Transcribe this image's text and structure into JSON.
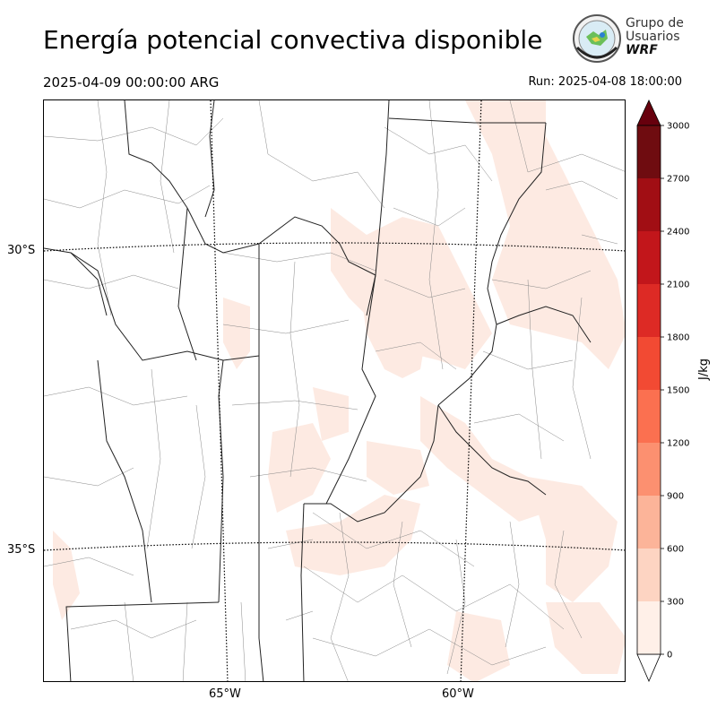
{
  "title": "Energía potencial convectiva disponible",
  "valid_time": "2025-04-09 00:00:00 ARG",
  "run_time": "Run: 2025-04-08 18:00:00",
  "logo": {
    "line1": "Grupo de",
    "line2": "Usuarios",
    "line3": "WRF"
  },
  "map": {
    "lat_labels": [
      "30°S",
      "35°S"
    ],
    "lon_labels": [
      "65°W",
      "60°W"
    ]
  },
  "colorbar": {
    "unit": "J/kg",
    "ticks": [
      "0",
      "300",
      "600",
      "900",
      "1200",
      "1500",
      "1800",
      "2100",
      "2400",
      "2700",
      "3000"
    ],
    "colors": [
      "#fff0e8",
      "#fdd4c2",
      "#fcb499",
      "#fc9070",
      "#fb7050",
      "#f24a33",
      "#dd2a25",
      "#c2161b",
      "#a10e14",
      "#6f0c10",
      "#67000d"
    ],
    "extend": "both"
  }
}
